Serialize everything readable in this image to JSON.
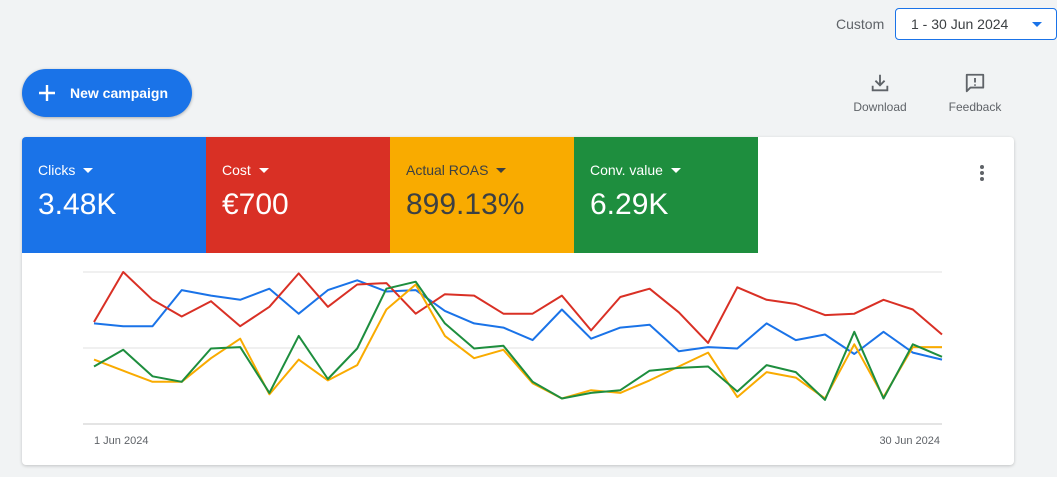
{
  "header": {
    "date_label": "Custom",
    "date_range": "1 - 30 Jun 2024"
  },
  "actions": {
    "new_campaign": "New campaign",
    "download": "Download",
    "feedback": "Feedback"
  },
  "metrics": [
    {
      "label": "Clicks",
      "value": "3.48K",
      "color": "#1a73e8",
      "text_color": "#ffffff"
    },
    {
      "label": "Cost",
      "value": "€700",
      "color": "#d93025",
      "text_color": "#ffffff"
    },
    {
      "label": "Actual ROAS",
      "value": "899.13%",
      "color": "#f9ab00",
      "text_color": "#3c4043"
    },
    {
      "label": "Conv. value",
      "value": "6.29K",
      "color": "#1e8e3e",
      "text_color": "#ffffff"
    }
  ],
  "chart_data": {
    "type": "line",
    "x_start_label": "1 Jun 2024",
    "x_end_label": "30 Jun 2024",
    "x": [
      1,
      2,
      3,
      4,
      5,
      6,
      7,
      8,
      9,
      10,
      11,
      12,
      13,
      14,
      15,
      16,
      17,
      18,
      19,
      20,
      21,
      22,
      23,
      24,
      25,
      26,
      27,
      28,
      29,
      30
    ],
    "ylim": [
      0,
      100
    ],
    "series": [
      {
        "name": "Clicks",
        "color": "#1a73e8",
        "values": [
          63,
          61,
          61,
          87,
          83,
          80,
          88,
          70,
          87,
          94,
          86,
          87,
          72,
          63,
          60,
          51,
          73,
          52,
          60,
          62,
          43,
          46,
          45,
          63,
          51,
          55,
          41,
          57,
          42,
          37
        ]
      },
      {
        "name": "Cost",
        "color": "#d93025",
        "values": [
          64,
          100,
          80,
          68,
          79,
          61,
          75,
          99,
          75,
          91,
          92,
          70,
          84,
          83,
          70,
          70,
          83,
          58,
          82,
          88,
          71,
          49,
          89,
          80,
          77,
          69,
          70,
          80,
          73,
          55
        ]
      },
      {
        "name": "Actual ROAS",
        "color": "#f9ab00",
        "values": [
          37,
          29,
          21,
          21,
          38,
          52,
          12,
          37,
          22,
          33,
          73,
          91,
          54,
          38,
          44,
          20,
          9,
          15,
          13,
          22,
          32,
          42,
          10,
          28,
          24,
          9,
          48,
          10,
          46,
          46
        ]
      },
      {
        "name": "Conv. value",
        "color": "#1e8e3e",
        "values": [
          32,
          44,
          25,
          21,
          45,
          46,
          13,
          54,
          23,
          45,
          88,
          93,
          63,
          45,
          47,
          21,
          9,
          13,
          15,
          29,
          31,
          32,
          14,
          33,
          28,
          8,
          57,
          9,
          48,
          39
        ]
      }
    ]
  }
}
